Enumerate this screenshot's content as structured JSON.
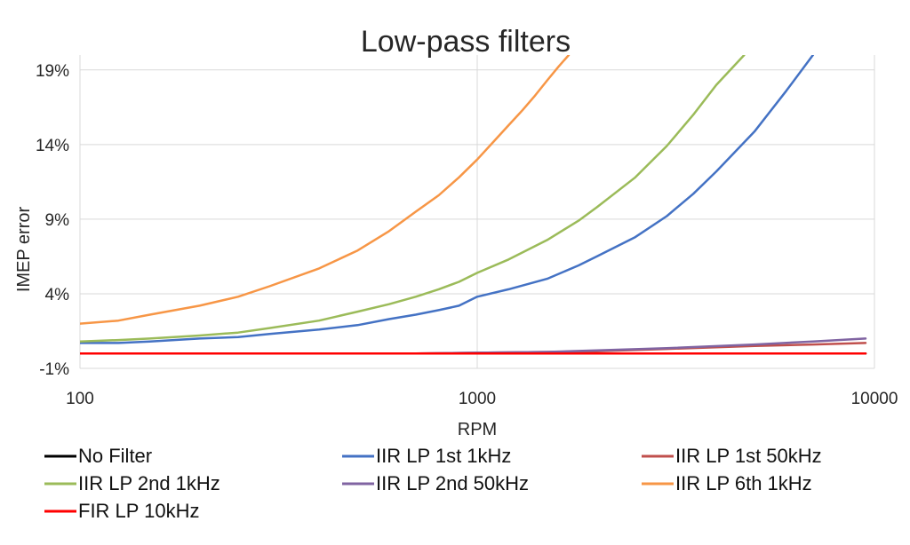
{
  "chart_data": {
    "type": "line",
    "title": "Low-pass filters",
    "xlabel": "RPM",
    "ylabel": "IMEP error",
    "x_scale": "log",
    "xlim": [
      100,
      10000
    ],
    "ylim": [
      -1,
      20
    ],
    "x_ticks": [
      100,
      1000,
      10000
    ],
    "x_tick_labels": [
      "100",
      "1000",
      "10000"
    ],
    "y_ticks": [
      -1,
      4,
      9,
      14,
      19
    ],
    "y_tick_labels": [
      "-1%",
      "4%",
      "9%",
      "14%",
      "19%"
    ],
    "grid": true,
    "legend_position": "bottom",
    "series": [
      {
        "name": "No Filter",
        "color": "#000000",
        "x": [
          100,
          150,
          200,
          300,
          500,
          700,
          1000,
          1500,
          2000,
          3000,
          5000,
          7000,
          9500
        ],
        "y": [
          0.0,
          0.0,
          0.0,
          0.0,
          0.0,
          0.0,
          0.0,
          0.0,
          0.0,
          0.0,
          0.0,
          0.0,
          0.0
        ]
      },
      {
        "name": "IIR LP 1st 1kHz",
        "color": "#4472c4",
        "x": [
          100,
          125,
          150,
          200,
          250,
          300,
          400,
          500,
          600,
          700,
          800,
          900,
          1000,
          1200,
          1500,
          1800,
          2000,
          2500,
          3000,
          3500,
          4000,
          5000,
          6000,
          7000
        ],
        "y": [
          0.7,
          0.7,
          0.8,
          1.0,
          1.1,
          1.3,
          1.6,
          1.9,
          2.3,
          2.6,
          2.9,
          3.2,
          3.8,
          4.3,
          5.0,
          5.9,
          6.5,
          7.8,
          9.2,
          10.7,
          12.2,
          14.9,
          17.6,
          20.0
        ]
      },
      {
        "name": "IIR LP 1st 50kHz",
        "color": "#c0504d",
        "x": [
          100,
          200,
          300,
          500,
          700,
          1000,
          1500,
          2000,
          3000,
          5000,
          7000,
          9500
        ],
        "y": [
          0.0,
          0.0,
          0.0,
          0.0,
          0.0,
          0.05,
          0.1,
          0.15,
          0.3,
          0.5,
          0.6,
          0.7
        ]
      },
      {
        "name": "IIR LP 2nd 1kHz",
        "color": "#9bbb59",
        "x": [
          100,
          125,
          150,
          200,
          250,
          300,
          400,
          500,
          600,
          700,
          800,
          900,
          1000,
          1200,
          1500,
          1800,
          2000,
          2500,
          3000,
          3500,
          4000,
          4700
        ],
        "y": [
          0.8,
          0.9,
          1.0,
          1.2,
          1.4,
          1.7,
          2.2,
          2.8,
          3.3,
          3.8,
          4.3,
          4.8,
          5.4,
          6.3,
          7.6,
          8.9,
          9.8,
          11.8,
          13.9,
          16.0,
          18.0,
          20.0
        ]
      },
      {
        "name": "IIR LP 2nd 50kHz",
        "color": "#8064a2",
        "x": [
          100,
          200,
          300,
          500,
          700,
          1000,
          1500,
          2000,
          3000,
          5000,
          7000,
          9500
        ],
        "y": [
          0.0,
          0.0,
          0.0,
          0.0,
          0.0,
          0.05,
          0.1,
          0.2,
          0.35,
          0.6,
          0.8,
          1.0
        ]
      },
      {
        "name": "IIR LP 6th 1kHz",
        "color": "#f79646",
        "x": [
          100,
          125,
          150,
          200,
          250,
          300,
          400,
          500,
          600,
          700,
          800,
          900,
          1000,
          1100,
          1200,
          1300,
          1400,
          1500,
          1600,
          1700
        ],
        "y": [
          2.0,
          2.2,
          2.6,
          3.2,
          3.8,
          4.5,
          5.7,
          6.9,
          8.2,
          9.5,
          10.6,
          11.8,
          13.0,
          14.2,
          15.3,
          16.3,
          17.3,
          18.3,
          19.2,
          20.0
        ]
      },
      {
        "name": "FIR LP 10kHz",
        "color": "#ff0000",
        "x": [
          100,
          150,
          200,
          300,
          500,
          700,
          1000,
          1500,
          2000,
          3000,
          5000,
          7000,
          9500
        ],
        "y": [
          0.0,
          0.0,
          0.0,
          0.0,
          0.0,
          0.0,
          0.0,
          0.0,
          0.0,
          0.0,
          0.0,
          0.0,
          0.0
        ]
      }
    ]
  }
}
